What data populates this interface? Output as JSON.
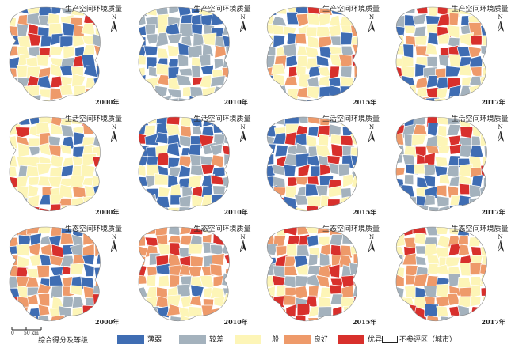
{
  "colors": {
    "very_weak": "#3f6db3",
    "weak": "#a4b2bd",
    "average": "#fdf5b7",
    "good": "#ee9a6a",
    "excellent": "#d8302c",
    "outline": "#ffffff"
  },
  "north_label": "N",
  "panels": [
    {
      "title": "生产空间环境质量",
      "year": "2000年"
    },
    {
      "title": "生产空间环境质量",
      "year": "2010年"
    },
    {
      "title": "生产空间环境质量",
      "year": "2015年"
    },
    {
      "title": "生产空间环境质量",
      "year": "2017年"
    },
    {
      "title": "生活空间环境质量",
      "year": "2000年"
    },
    {
      "title": "生活空间环境质量",
      "year": "2010年"
    },
    {
      "title": "生活空间环境质量",
      "year": "2015年"
    },
    {
      "title": "生活空间环境质量",
      "year": "2017年"
    },
    {
      "title": "生态空间环境质量",
      "year": "2000年"
    },
    {
      "title": "生态空间环境质量",
      "year": "2010年"
    },
    {
      "title": "生态空间环境质量",
      "year": "2015年"
    },
    {
      "title": "生态空间环境质量",
      "year": "2017年"
    }
  ],
  "scale": {
    "zero": "0",
    "value": "50 km"
  },
  "legend": {
    "title": "综合得分及等级",
    "items": [
      {
        "label": "薄弱",
        "color": "#3f6db3"
      },
      {
        "label": "较差",
        "color": "#a4b2bd"
      },
      {
        "label": "一般",
        "color": "#fdf5b7"
      },
      {
        "label": "良好",
        "color": "#ee9a6a"
      },
      {
        "label": "优异",
        "color": "#d8302c"
      },
      {
        "label": "不参评区（城市）",
        "color": "#ffffff"
      }
    ]
  }
}
